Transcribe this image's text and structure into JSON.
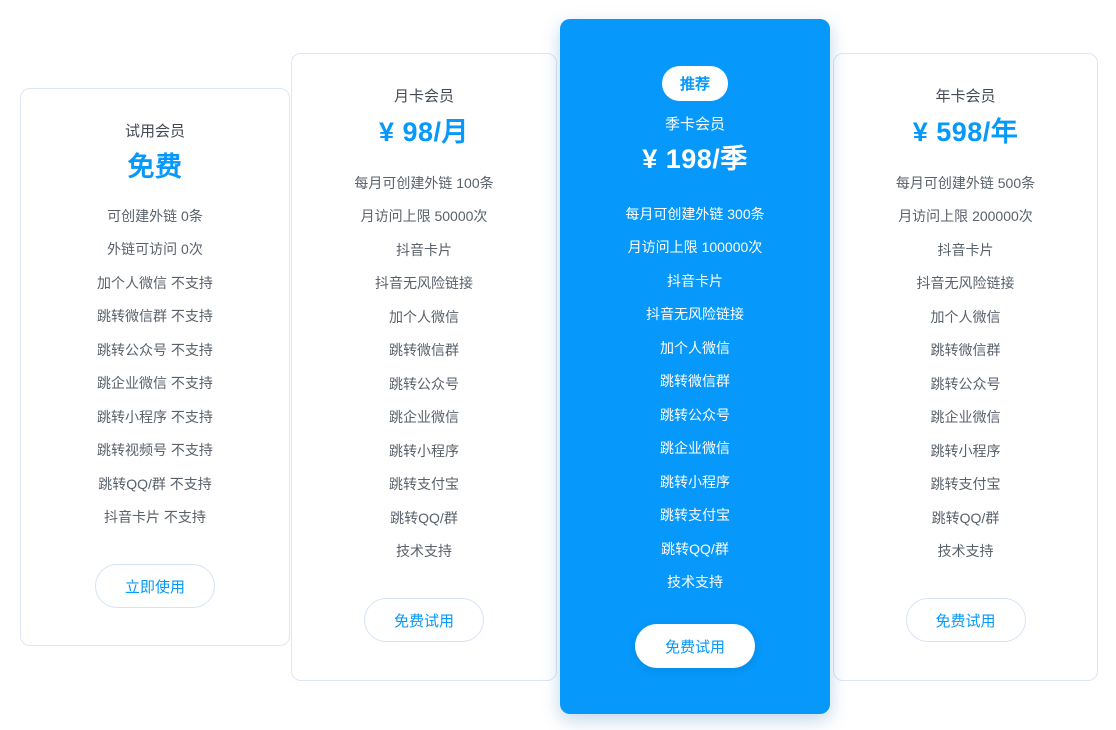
{
  "colors": {
    "accent": "#0698fa",
    "highlight_card_bg": "#0698fa",
    "card_border": "#dde5f6",
    "title_text": "#434a54",
    "feature_text": "#59616b",
    "highlight_text": "#ffffff"
  },
  "cards": [
    {
      "id": "trial",
      "title": "试用会员",
      "price": "免费",
      "features": [
        "可创建外链 0条",
        "外链可访问 0次",
        "加个人微信 不支持",
        "跳转微信群 不支持",
        "跳转公众号 不支持",
        "跳企业微信 不支持",
        "跳转小程序 不支持",
        "跳转视频号 不支持",
        "跳转QQ/群 不支持",
        "抖音卡片 不支持"
      ],
      "button": "立即使用"
    },
    {
      "id": "monthly",
      "title": "月卡会员",
      "price": "¥ 98/月",
      "features": [
        "每月可创建外链 100条",
        "月访问上限 50000次",
        "抖音卡片",
        "抖音无风险链接",
        "加个人微信",
        "跳转微信群",
        "跳转公众号",
        "跳企业微信",
        "跳转小程序",
        "跳转支付宝",
        "跳转QQ/群",
        "技术支持"
      ],
      "button": "免费试用"
    },
    {
      "id": "quarterly",
      "badge": "推荐",
      "title": "季卡会员",
      "price": "¥ 198/季",
      "features": [
        "每月可创建外链 300条",
        "月访问上限 100000次",
        "抖音卡片",
        "抖音无风险链接",
        "加个人微信",
        "跳转微信群",
        "跳转公众号",
        "跳企业微信",
        "跳转小程序",
        "跳转支付宝",
        "跳转QQ/群",
        "技术支持"
      ],
      "button": "免费试用"
    },
    {
      "id": "yearly",
      "title": "年卡会员",
      "price": "¥ 598/年",
      "features": [
        "每月可创建外链 500条",
        "月访问上限 200000次",
        "抖音卡片",
        "抖音无风险链接",
        "加个人微信",
        "跳转微信群",
        "跳转公众号",
        "跳企业微信",
        "跳转小程序",
        "跳转支付宝",
        "跳转QQ/群",
        "技术支持"
      ],
      "button": "免费试用"
    }
  ]
}
